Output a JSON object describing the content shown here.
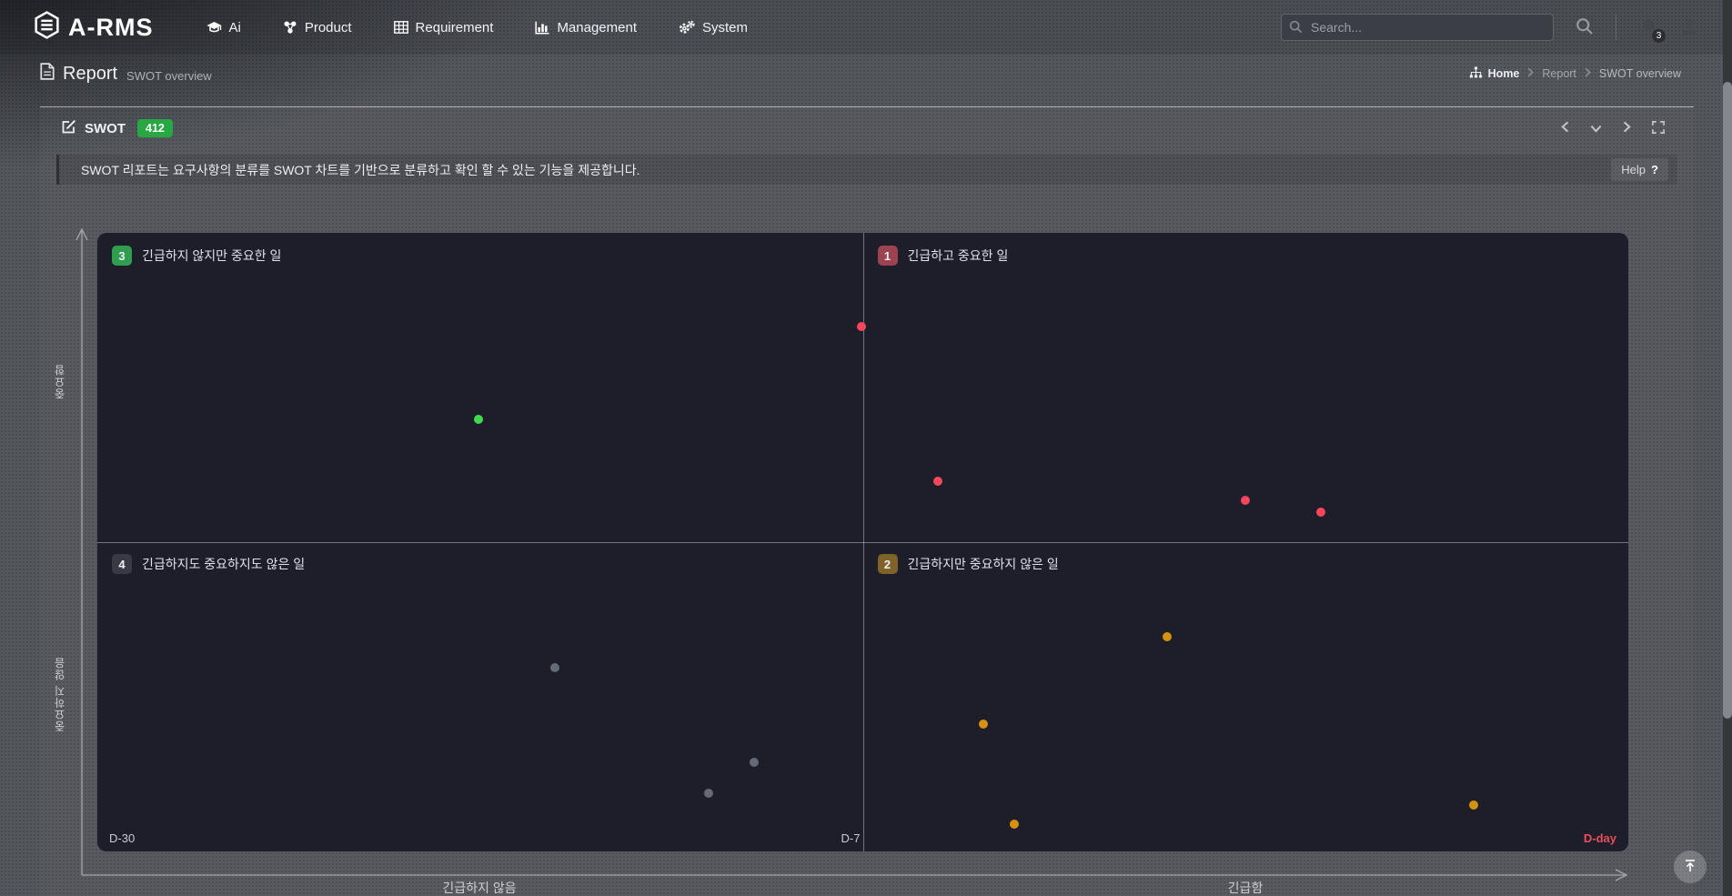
{
  "navbar": {
    "logo_text": "A-RMS",
    "items": [
      {
        "label": "Ai",
        "icon": "graduation-cap-icon"
      },
      {
        "label": "Product",
        "icon": "share-nodes-icon"
      },
      {
        "label": "Requirement",
        "icon": "table-icon"
      },
      {
        "label": "Management",
        "icon": "bar-chart-icon"
      },
      {
        "label": "System",
        "icon": "gears-icon"
      }
    ],
    "search": {
      "placeholder": "Search...",
      "value": ""
    },
    "notification_badge": "3"
  },
  "page_header": {
    "title": "Report",
    "subtitle": "SWOT overview",
    "breadcrumb": {
      "items": [
        "Home",
        "Report",
        "SWOT overview"
      ]
    }
  },
  "panel": {
    "title": "SWOT",
    "count_badge": "412",
    "description": "SWOT 리포트는 요구사항의 분류를 SWOT 차트를 기반으로 분류하고 확인 할 수 있는 기능을 제공합니다.",
    "help": {
      "label": "Help",
      "glyph": "?"
    }
  },
  "chart_data": {
    "type": "scatter",
    "title": "SWOT overview quadrant chart",
    "x_axis": {
      "ticks": [
        "D-30",
        "D-7",
        "D-day"
      ],
      "range_labels": [
        "긴급하지 않음",
        "긴급함"
      ],
      "dday_color": "#e8505b"
    },
    "y_axis": {
      "labels": [
        "중요함",
        "중요하지 않음"
      ]
    },
    "grid": "center-cross",
    "quadrants": [
      {
        "num": "3",
        "label": "긴급하지 않지만 중요한 일",
        "position": "top-left",
        "badge_color": "#2f9e4f"
      },
      {
        "num": "1",
        "label": "긴급하고 중요한 일",
        "position": "top-right",
        "badge_color": "#9c4250"
      },
      {
        "num": "4",
        "label": "긴급하지도 중요하지도 않은 일",
        "position": "bottom-left",
        "badge_color": "#3a3a46"
      },
      {
        "num": "2",
        "label": "긴급하지만 중요하지 않은 일",
        "position": "bottom-right",
        "badge_color": "#7f6227"
      }
    ],
    "points": [
      {
        "x_pct": 49.9,
        "y_pct": 15.1,
        "color": "#f6475b",
        "quadrant": "1"
      },
      {
        "x_pct": 54.9,
        "y_pct": 40.1,
        "color": "#f6475b",
        "quadrant": "1"
      },
      {
        "x_pct": 75.0,
        "y_pct": 43.2,
        "color": "#f6475b",
        "quadrant": "1"
      },
      {
        "x_pct": 79.9,
        "y_pct": 45.1,
        "color": "#f6475b",
        "quadrant": "1"
      },
      {
        "x_pct": 24.9,
        "y_pct": 30.1,
        "color": "#3ddb4b",
        "quadrant": "3"
      },
      {
        "x_pct": 29.9,
        "y_pct": 70.3,
        "color": "#646a78",
        "quadrant": "4"
      },
      {
        "x_pct": 42.9,
        "y_pct": 85.6,
        "color": "#646a78",
        "quadrant": "4"
      },
      {
        "x_pct": 39.9,
        "y_pct": 90.6,
        "color": "#646a78",
        "quadrant": "4"
      },
      {
        "x_pct": 69.9,
        "y_pct": 65.3,
        "color": "#d59210",
        "quadrant": "2"
      },
      {
        "x_pct": 57.9,
        "y_pct": 79.4,
        "color": "#d59210",
        "quadrant": "2"
      },
      {
        "x_pct": 59.9,
        "y_pct": 95.6,
        "color": "#d59210",
        "quadrant": "2"
      },
      {
        "x_pct": 89.9,
        "y_pct": 92.5,
        "color": "#d59210",
        "quadrant": "2"
      }
    ]
  }
}
